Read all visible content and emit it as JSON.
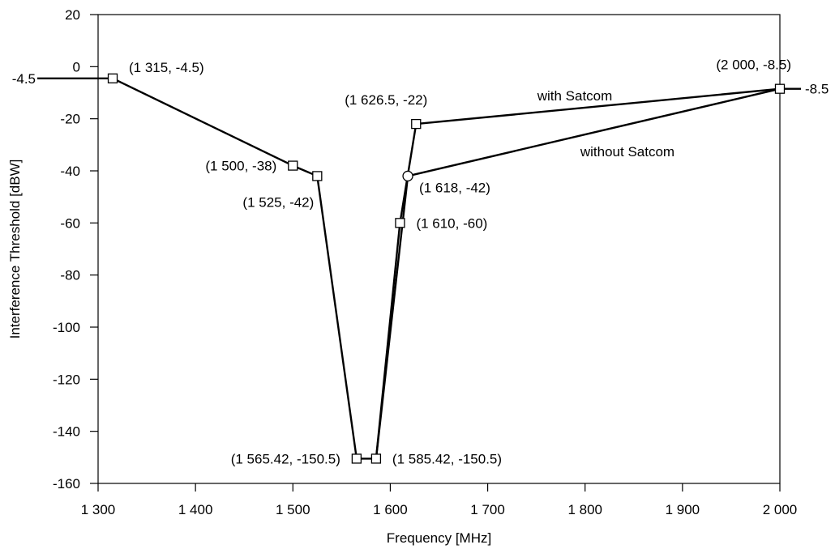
{
  "chart_data": {
    "type": "line",
    "xlabel": "Frequency [MHz]",
    "ylabel": "Interference Threshold [dBW]",
    "xlim": [
      1300,
      2000
    ],
    "ylim": [
      -160,
      20
    ],
    "grid": false,
    "x_ticks": [
      {
        "value": 1300,
        "label": "1 300"
      },
      {
        "value": 1400,
        "label": "1 400"
      },
      {
        "value": 1500,
        "label": "1 500"
      },
      {
        "value": 1600,
        "label": "1 600"
      },
      {
        "value": 1700,
        "label": "1 700"
      },
      {
        "value": 1800,
        "label": "1 800"
      },
      {
        "value": 1900,
        "label": "1 900"
      },
      {
        "value": 2000,
        "label": "2 000"
      }
    ],
    "y_ticks": [
      {
        "value": 20,
        "label": "20"
      },
      {
        "value": 0,
        "label": "0"
      },
      {
        "value": -20,
        "label": "-20"
      },
      {
        "value": -40,
        "label": "-40"
      },
      {
        "value": -60,
        "label": "-60"
      },
      {
        "value": -80,
        "label": "-80"
      },
      {
        "value": -100,
        "label": "-100"
      },
      {
        "value": -120,
        "label": "-120"
      },
      {
        "value": -140,
        "label": "-140"
      },
      {
        "value": -160,
        "label": "-160"
      }
    ],
    "left_edge_label": "-4.5",
    "right_edge_label": "-8.5",
    "series": [
      {
        "name": "with Satcom",
        "points": [
          {
            "x": 1315,
            "y": -4.5,
            "marker": "square"
          },
          {
            "x": 1500,
            "y": -38,
            "marker": "square"
          },
          {
            "x": 1525,
            "y": -42,
            "marker": "square"
          },
          {
            "x": 1565.42,
            "y": -150.5,
            "marker": "square"
          },
          {
            "x": 1585.42,
            "y": -150.5,
            "marker": "square"
          },
          {
            "x": 1610,
            "y": -60,
            "marker": "square"
          },
          {
            "x": 1626.5,
            "y": -22,
            "marker": "square"
          },
          {
            "x": 2000,
            "y": -8.5,
            "marker": "square"
          }
        ]
      },
      {
        "name": "without Satcom",
        "points": [
          {
            "x": 1585.42,
            "y": -150.5,
            "marker": "none"
          },
          {
            "x": 1618,
            "y": -42,
            "marker": "circle"
          },
          {
            "x": 2000,
            "y": -8.5,
            "marker": "none"
          }
        ]
      }
    ],
    "annotations": [
      {
        "text": "(1 315, -4.5)",
        "x": 1315,
        "y": -4.5,
        "pos": "right-up"
      },
      {
        "text": "(1 500, -38)",
        "x": 1500,
        "y": -38,
        "pos": "left"
      },
      {
        "text": "(1 525, -42)",
        "x": 1525,
        "y": -42,
        "pos": "below-left"
      },
      {
        "text": "(1 565.42, -150.5)",
        "x": 1565.42,
        "y": -150.5,
        "pos": "left"
      },
      {
        "text": "(1 585.42, -150.5)",
        "x": 1585.42,
        "y": -150.5,
        "pos": "right"
      },
      {
        "text": "(1 610, -60)",
        "x": 1610,
        "y": -60,
        "pos": "right"
      },
      {
        "text": "(1 618, -42)",
        "x": 1618,
        "y": -42,
        "pos": "right-down"
      },
      {
        "text": "(1 626.5, -22)",
        "x": 1626.5,
        "y": -22,
        "pos": "left-up"
      },
      {
        "text": "(2 000, -8.5)",
        "x": 2000,
        "y": -8.5,
        "pos": "left-up"
      }
    ]
  }
}
